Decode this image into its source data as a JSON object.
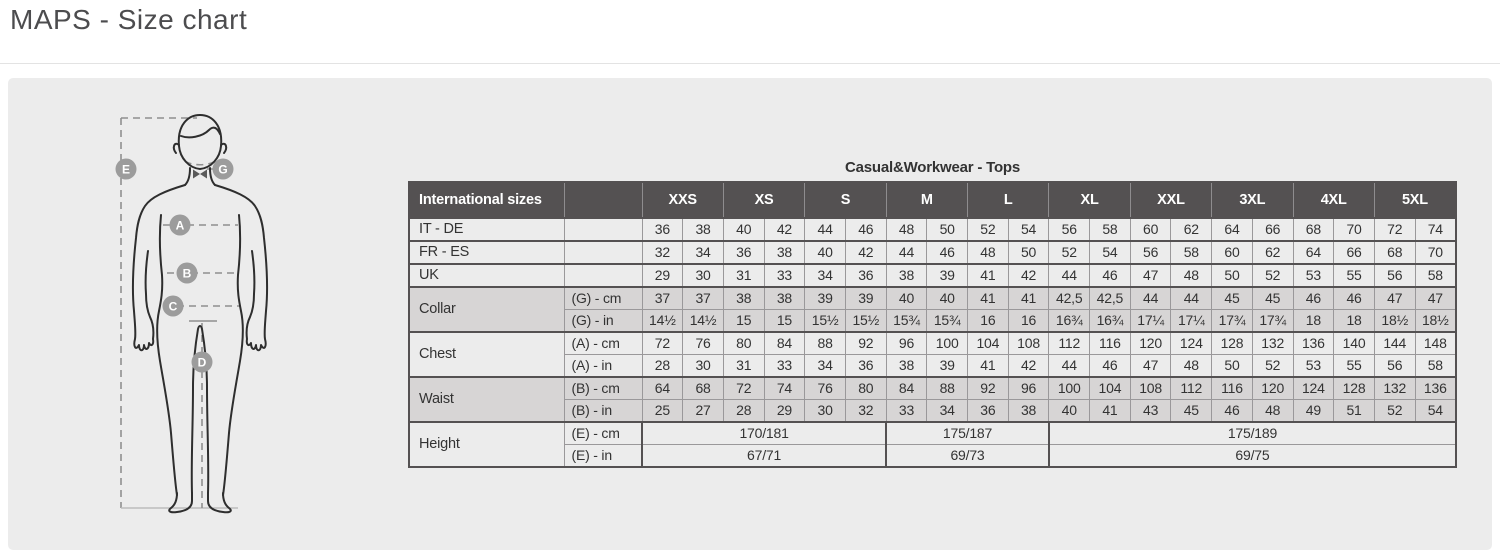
{
  "page": {
    "title": "MAPS - Size chart"
  },
  "diagram": {
    "markers": [
      "E",
      "G",
      "A",
      "B",
      "C",
      "D"
    ]
  },
  "table": {
    "title": "Casual&Workwear - Tops",
    "header": {
      "label": "International sizes",
      "sizes": [
        "XXS",
        "XS",
        "S",
        "M",
        "L",
        "XL",
        "XXL",
        "3XL",
        "4XL",
        "5XL"
      ]
    },
    "rows": [
      {
        "label": "IT - DE",
        "shaded": false,
        "cells": [
          {
            "sub": "",
            "values": [
              "36",
              "38",
              "40",
              "42",
              "44",
              "46",
              "48",
              "50",
              "52",
              "54",
              "56",
              "58",
              "60",
              "62",
              "64",
              "66",
              "68",
              "70",
              "72",
              "74"
            ]
          }
        ]
      },
      {
        "label": "FR - ES",
        "shaded": false,
        "cells": [
          {
            "sub": "",
            "values": [
              "32",
              "34",
              "36",
              "38",
              "40",
              "42",
              "44",
              "46",
              "48",
              "50",
              "52",
              "54",
              "56",
              "58",
              "60",
              "62",
              "64",
              "66",
              "68",
              "70"
            ]
          }
        ]
      },
      {
        "label": "UK",
        "shaded": false,
        "cells": [
          {
            "sub": "",
            "values": [
              "29",
              "30",
              "31",
              "33",
              "34",
              "36",
              "38",
              "39",
              "41",
              "42",
              "44",
              "46",
              "47",
              "48",
              "50",
              "52",
              "53",
              "55",
              "56",
              "58"
            ]
          }
        ]
      },
      {
        "label": "Collar",
        "shaded": true,
        "cells": [
          {
            "sub": "(G) - cm",
            "values": [
              "37",
              "37",
              "38",
              "38",
              "39",
              "39",
              "40",
              "40",
              "41",
              "41",
              "42,5",
              "42,5",
              "44",
              "44",
              "45",
              "45",
              "46",
              "46",
              "47",
              "47"
            ]
          },
          {
            "sub": "(G) - in",
            "values": [
              "14½",
              "14½",
              "15",
              "15",
              "15½",
              "15½",
              "15¾",
              "15¾",
              "16",
              "16",
              "16¾",
              "16¾",
              "17¼",
              "17¼",
              "17¾",
              "17¾",
              "18",
              "18",
              "18½",
              "18½"
            ]
          }
        ]
      },
      {
        "label": "Chest",
        "shaded": false,
        "cells": [
          {
            "sub": "(A) - cm",
            "values": [
              "72",
              "76",
              "80",
              "84",
              "88",
              "92",
              "96",
              "100",
              "104",
              "108",
              "112",
              "116",
              "120",
              "124",
              "128",
              "132",
              "136",
              "140",
              "144",
              "148"
            ]
          },
          {
            "sub": "(A) - in",
            "values": [
              "28",
              "30",
              "31",
              "33",
              "34",
              "36",
              "38",
              "39",
              "41",
              "42",
              "44",
              "46",
              "47",
              "48",
              "50",
              "52",
              "53",
              "55",
              "56",
              "58"
            ]
          }
        ]
      },
      {
        "label": "Waist",
        "shaded": true,
        "cells": [
          {
            "sub": "(B) - cm",
            "values": [
              "64",
              "68",
              "72",
              "74",
              "76",
              "80",
              "84",
              "88",
              "92",
              "96",
              "100",
              "104",
              "108",
              "112",
              "116",
              "120",
              "124",
              "128",
              "132",
              "136"
            ]
          },
          {
            "sub": "(B) - in",
            "values": [
              "25",
              "27",
              "28",
              "29",
              "30",
              "32",
              "33",
              "34",
              "36",
              "38",
              "40",
              "41",
              "43",
              "45",
              "46",
              "48",
              "49",
              "51",
              "52",
              "54"
            ]
          }
        ]
      },
      {
        "label": "Height",
        "shaded": false,
        "cells": [
          {
            "sub": "(E) - cm",
            "spans": [
              {
                "text": "170/181",
                "cols": 6
              },
              {
                "text": "175/187",
                "cols": 4
              },
              {
                "text": "175/189",
                "cols": 10
              }
            ]
          },
          {
            "sub": "(E) - in",
            "spans": [
              {
                "text": "67/71",
                "cols": 6
              },
              {
                "text": "69/73",
                "cols": 4
              },
              {
                "text": "69/75",
                "cols": 10
              }
            ]
          }
        ]
      }
    ]
  }
}
